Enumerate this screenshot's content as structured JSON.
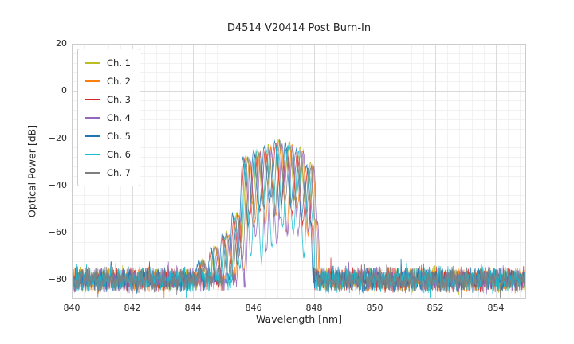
{
  "chart_data": {
    "type": "line",
    "title": "D4514 V20414 Post Burn-In",
    "xlabel": "Wavelength [nm]",
    "ylabel": "Optical Power [dB]",
    "xlim": [
      840,
      855
    ],
    "ylim": [
      -88,
      20
    ],
    "xticks": [
      840,
      842,
      844,
      846,
      848,
      850,
      852,
      854
    ],
    "yticks": [
      20,
      0,
      -20,
      -40,
      -60,
      -80
    ],
    "x_minor_step": 0.4,
    "y_minor_step": 4,
    "grid": true,
    "legend_position": "upper left",
    "noise": {
      "mean_db": -80,
      "spread_db": 6
    },
    "envelope_points": [
      [
        844.05,
        -86
      ],
      [
        844.3,
        -72
      ],
      [
        844.5,
        -80,
        1
      ],
      [
        844.7,
        -66
      ],
      [
        844.9,
        -75,
        1
      ],
      [
        845.08,
        -60
      ],
      [
        845.26,
        -69,
        1
      ],
      [
        845.42,
        -52
      ],
      [
        845.58,
        -57,
        1
      ],
      [
        845.76,
        -28
      ],
      [
        845.94,
        -41,
        1
      ],
      [
        846.11,
        -25
      ],
      [
        846.29,
        -39,
        1
      ],
      [
        846.46,
        -23.5
      ],
      [
        846.64,
        -37,
        1
      ],
      [
        846.81,
        -21
      ],
      [
        846.99,
        -36,
        1
      ],
      [
        847.16,
        -22
      ],
      [
        847.34,
        -38,
        1
      ],
      [
        847.51,
        -24.5
      ],
      [
        847.69,
        -43,
        1
      ],
      [
        847.86,
        -31
      ],
      [
        847.99,
        -55
      ],
      [
        848.1,
        -86
      ]
    ],
    "series": [
      {
        "name": "Ch. 1",
        "color": "#bcbd22",
        "offset_nm": 0.02,
        "gain_db": 0,
        "notch_extra_db": 8
      },
      {
        "name": "Ch. 2",
        "color": "#ff7f0e",
        "offset_nm": 0.1,
        "gain_db": -1,
        "notch_extra_db": 25
      },
      {
        "name": "Ch. 3",
        "color": "#d62728",
        "offset_nm": -0.07,
        "gain_db": -2,
        "notch_extra_db": 14
      },
      {
        "name": "Ch. 4",
        "color": "#9467bd",
        "offset_nm": 0.13,
        "gain_db": -1.5,
        "notch_extra_db": 30
      },
      {
        "name": "Ch. 5",
        "color": "#1f77b4",
        "offset_nm": -0.11,
        "gain_db": -0.5,
        "notch_extra_db": 20
      },
      {
        "name": "Ch. 6",
        "color": "#17becf",
        "offset_nm": -0.03,
        "gain_db": -1.2,
        "notch_extra_db": 35
      },
      {
        "name": "Ch. 7",
        "color": "#7f7f7f",
        "offset_nm": 0.05,
        "gain_db": -0.8,
        "notch_extra_db": 16
      }
    ]
  }
}
